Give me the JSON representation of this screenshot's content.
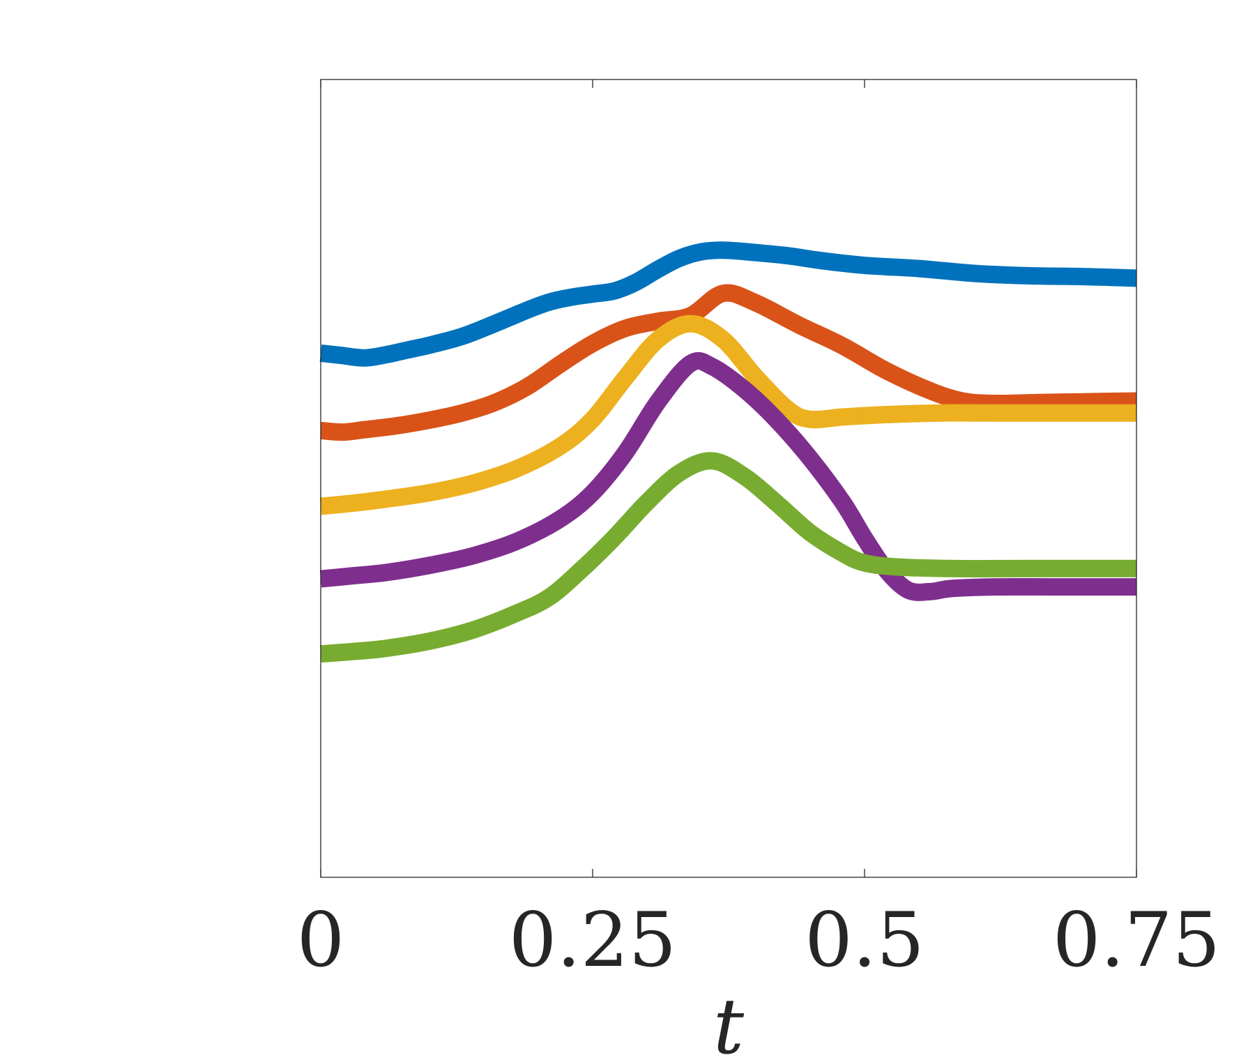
{
  "chart_data": {
    "type": "line",
    "title": "",
    "xlabel": "t",
    "ylabel": "",
    "xlim": [
      0,
      0.75
    ],
    "ylim": [
      0,
      1
    ],
    "x_ticks": [
      0,
      0.25,
      0.5,
      0.75
    ],
    "x_tick_labels": [
      "0",
      "0.25",
      "0.5",
      "0.75"
    ],
    "y_ticks": [],
    "grid": false,
    "legend": "none",
    "series": [
      {
        "color": "#0072BD",
        "points": [
          [
            0,
            0.657
          ],
          [
            0.02,
            0.654
          ],
          [
            0.04,
            0.651
          ],
          [
            0.06,
            0.655
          ],
          [
            0.08,
            0.661
          ],
          [
            0.1,
            0.667
          ],
          [
            0.13,
            0.678
          ],
          [
            0.16,
            0.694
          ],
          [
            0.19,
            0.711
          ],
          [
            0.21,
            0.721
          ],
          [
            0.23,
            0.727
          ],
          [
            0.25,
            0.731
          ],
          [
            0.27,
            0.735
          ],
          [
            0.29,
            0.746
          ],
          [
            0.31,
            0.762
          ],
          [
            0.33,
            0.776
          ],
          [
            0.35,
            0.784
          ],
          [
            0.37,
            0.786
          ],
          [
            0.4,
            0.783
          ],
          [
            0.43,
            0.779
          ],
          [
            0.46,
            0.773
          ],
          [
            0.5,
            0.767
          ],
          [
            0.55,
            0.763
          ],
          [
            0.6,
            0.757
          ],
          [
            0.65,
            0.754
          ],
          [
            0.7,
            0.753
          ],
          [
            0.75,
            0.751
          ]
        ]
      },
      {
        "color": "#D95319",
        "points": [
          [
            0,
            0.56
          ],
          [
            0.02,
            0.558
          ],
          [
            0.04,
            0.561
          ],
          [
            0.07,
            0.566
          ],
          [
            0.1,
            0.573
          ],
          [
            0.13,
            0.582
          ],
          [
            0.16,
            0.595
          ],
          [
            0.19,
            0.615
          ],
          [
            0.22,
            0.643
          ],
          [
            0.25,
            0.669
          ],
          [
            0.28,
            0.688
          ],
          [
            0.31,
            0.697
          ],
          [
            0.34,
            0.704
          ],
          [
            0.37,
            0.732
          ],
          [
            0.4,
            0.72
          ],
          [
            0.44,
            0.692
          ],
          [
            0.48,
            0.666
          ],
          [
            0.52,
            0.635
          ],
          [
            0.56,
            0.61
          ],
          [
            0.59,
            0.597
          ],
          [
            0.62,
            0.594
          ],
          [
            0.66,
            0.595
          ],
          [
            0.7,
            0.596
          ],
          [
            0.75,
            0.597
          ]
        ]
      },
      {
        "color": "#EDB120",
        "points": [
          [
            0,
            0.465
          ],
          [
            0.03,
            0.469
          ],
          [
            0.06,
            0.474
          ],
          [
            0.1,
            0.482
          ],
          [
            0.14,
            0.494
          ],
          [
            0.18,
            0.512
          ],
          [
            0.22,
            0.54
          ],
          [
            0.25,
            0.574
          ],
          [
            0.28,
            0.626
          ],
          [
            0.31,
            0.674
          ],
          [
            0.34,
            0.694
          ],
          [
            0.37,
            0.674
          ],
          [
            0.4,
            0.627
          ],
          [
            0.43,
            0.586
          ],
          [
            0.45,
            0.574
          ],
          [
            0.48,
            0.577
          ],
          [
            0.52,
            0.58
          ],
          [
            0.57,
            0.582
          ],
          [
            0.62,
            0.582
          ],
          [
            0.75,
            0.582
          ]
        ]
      },
      {
        "color": "#7E2F8E",
        "points": [
          [
            0,
            0.374
          ],
          [
            0.03,
            0.378
          ],
          [
            0.06,
            0.382
          ],
          [
            0.1,
            0.391
          ],
          [
            0.14,
            0.403
          ],
          [
            0.18,
            0.421
          ],
          [
            0.22,
            0.449
          ],
          [
            0.25,
            0.482
          ],
          [
            0.28,
            0.532
          ],
          [
            0.31,
            0.596
          ],
          [
            0.34,
            0.644
          ],
          [
            0.36,
            0.64
          ],
          [
            0.39,
            0.611
          ],
          [
            0.42,
            0.572
          ],
          [
            0.45,
            0.525
          ],
          [
            0.48,
            0.47
          ],
          [
            0.5,
            0.425
          ],
          [
            0.52,
            0.385
          ],
          [
            0.54,
            0.36
          ],
          [
            0.56,
            0.358
          ],
          [
            0.58,
            0.362
          ],
          [
            0.62,
            0.364
          ],
          [
            0.68,
            0.364
          ],
          [
            0.75,
            0.364
          ]
        ]
      },
      {
        "color": "#77AC30",
        "points": [
          [
            0,
            0.28
          ],
          [
            0.03,
            0.283
          ],
          [
            0.06,
            0.287
          ],
          [
            0.1,
            0.296
          ],
          [
            0.14,
            0.31
          ],
          [
            0.18,
            0.331
          ],
          [
            0.21,
            0.351
          ],
          [
            0.24,
            0.386
          ],
          [
            0.27,
            0.426
          ],
          [
            0.3,
            0.47
          ],
          [
            0.33,
            0.507
          ],
          [
            0.36,
            0.522
          ],
          [
            0.39,
            0.502
          ],
          [
            0.42,
            0.468
          ],
          [
            0.45,
            0.432
          ],
          [
            0.48,
            0.406
          ],
          [
            0.5,
            0.394
          ],
          [
            0.53,
            0.389
          ],
          [
            0.58,
            0.387
          ],
          [
            0.65,
            0.387
          ],
          [
            0.75,
            0.387
          ]
        ]
      }
    ]
  }
}
